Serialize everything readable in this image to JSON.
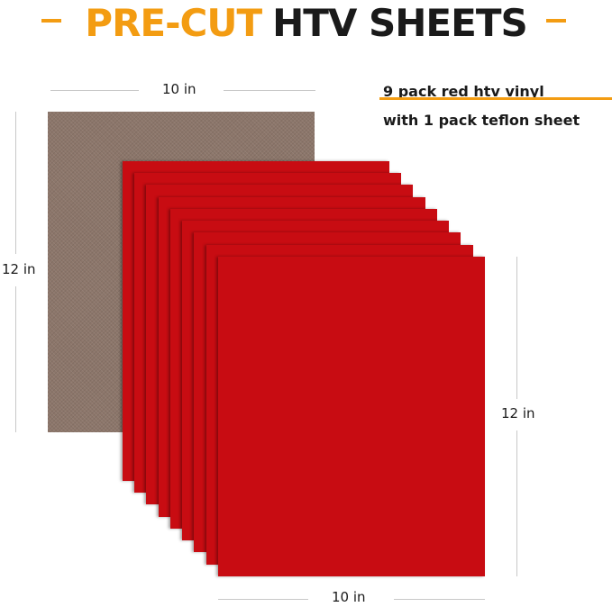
{
  "title": {
    "highlight": "PRE-CUT",
    "main": "HTV SHEETS"
  },
  "dimensions": {
    "teflon_width": "10 in",
    "teflon_height": "12 in",
    "vinyl_width": "10 in",
    "vinyl_height": "12 in"
  },
  "caption": {
    "line1": "9 pack red htv vinyl",
    "line2": "with 1 pack teflon sheet"
  },
  "colors": {
    "accent": "#f39c12",
    "vinyl_red": "#c80c12",
    "teflon_brown": "#8c766a"
  },
  "vinyl_sheet_count": 9
}
